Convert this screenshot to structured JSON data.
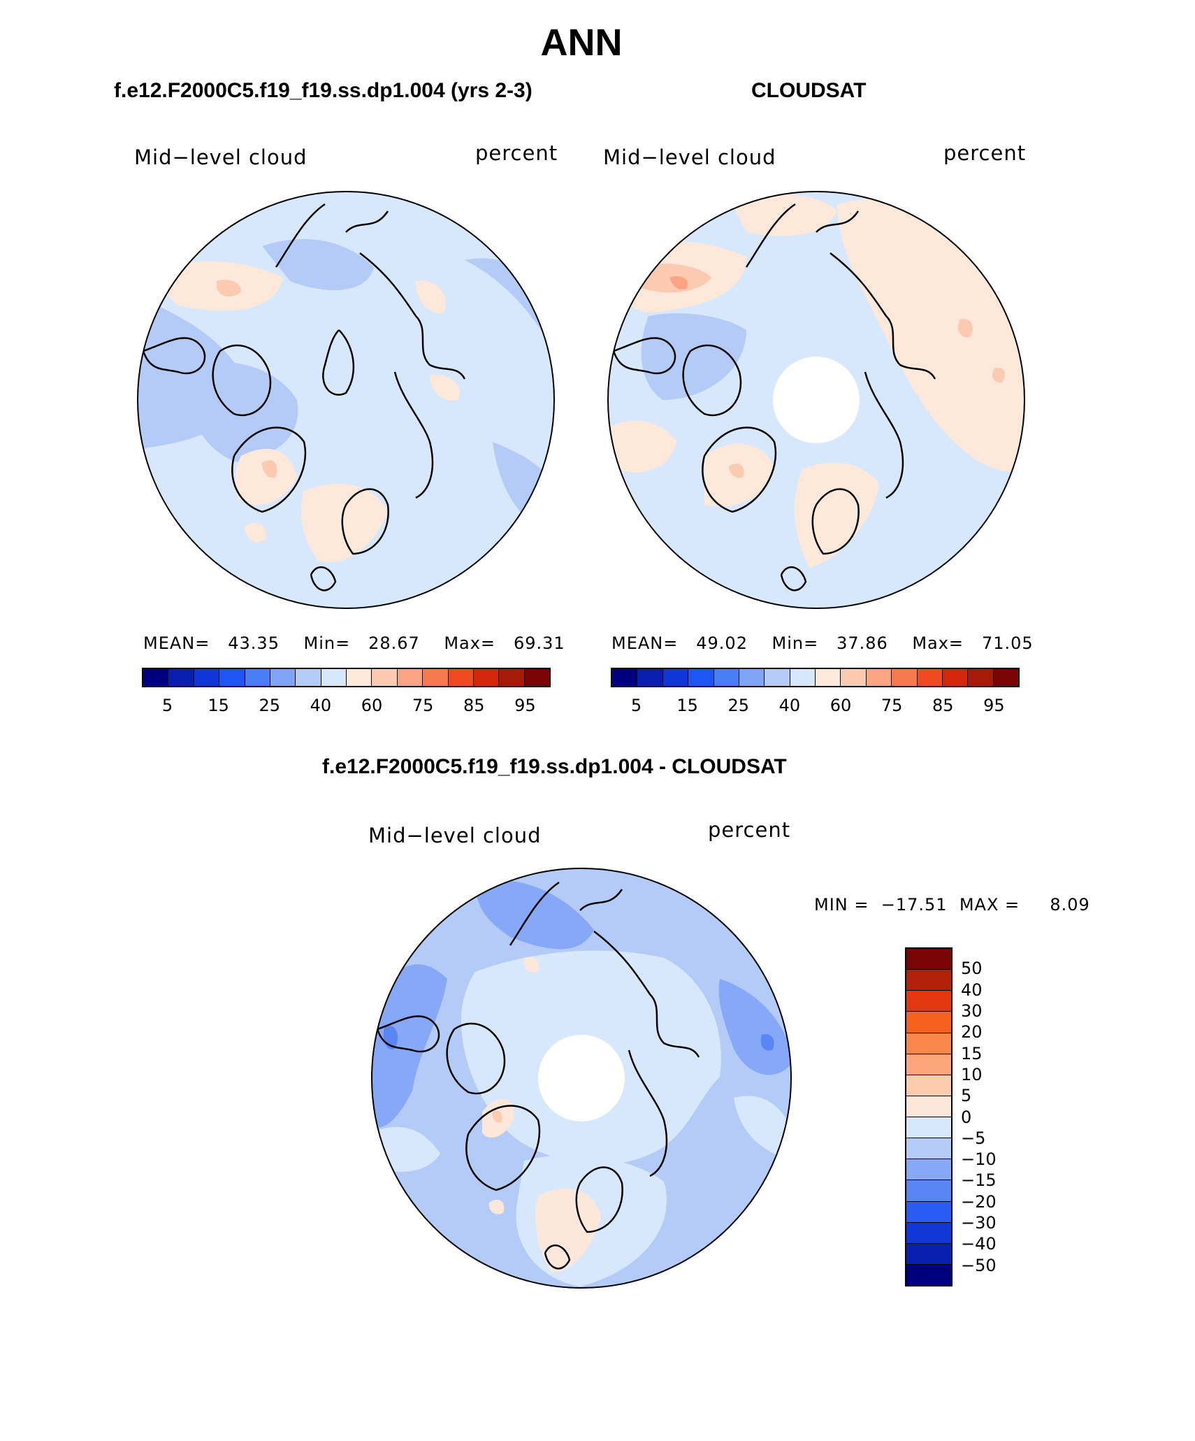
{
  "title": "ANN",
  "panel_left": {
    "case_title": "f.e12.F2000C5.f19_f19.ss.dp1.004 (yrs 2-3)",
    "variable": "Mid−level cloud",
    "units": "percent",
    "stats": {
      "mean_label": "MEAN=",
      "mean": "43.35",
      "min_label": "Min=",
      "min": "28.67",
      "max_label": "Max=",
      "max": "69.31"
    }
  },
  "panel_right": {
    "case_title": "CLOUDSAT",
    "variable": "Mid−level cloud",
    "units": "percent",
    "stats": {
      "mean_label": "MEAN=",
      "mean": "49.02",
      "min_label": "Min=",
      "min": "37.86",
      "max_label": "Max=",
      "max": "71.05"
    }
  },
  "panel_diff": {
    "case_title": "f.e12.F2000C5.f19_f19.ss.dp1.004 - CLOUDSAT",
    "variable": "Mid−level cloud",
    "units": "percent",
    "stats": {
      "min_label": "MIN =",
      "min": "−17.51",
      "max_label": "MAX =",
      "max": "8.09"
    }
  },
  "colorbar_abs": {
    "colors": [
      "#00007f",
      "#0a1fb0",
      "#1036d8",
      "#1f55f5",
      "#4a7cf5",
      "#7fa3f5",
      "#b4cbf7",
      "#d8e8fc",
      "#fde8da",
      "#fccab0",
      "#f9a583",
      "#f57a50",
      "#ef4a22",
      "#d5260c",
      "#a81a08",
      "#780404"
    ],
    "tick_labels": [
      "5",
      "15",
      "25",
      "40",
      "60",
      "75",
      "85",
      "95"
    ]
  },
  "colorbar_diff": {
    "colors": [
      "#780404",
      "#b3200b",
      "#e3380f",
      "#f5621e",
      "#f9874c",
      "#fba67c",
      "#fccbb0",
      "#fde7da",
      "#d8e8fc",
      "#b4cbf7",
      "#86a8f6",
      "#5a86f5",
      "#2a5bf3",
      "#1038d7",
      "#0a1fb0",
      "#00007f"
    ],
    "tick_labels": [
      "50",
      "40",
      "30",
      "20",
      "15",
      "10",
      "5",
      "0",
      "−5",
      "−10",
      "−15",
      "−20",
      "−30",
      "−40",
      "−50"
    ]
  },
  "map_fill": {
    "ocean_base_left": "#d8e8fc",
    "ocean_base_right": "#d8e8fc",
    "ocean_base_diff": "#d8e8fc"
  }
}
